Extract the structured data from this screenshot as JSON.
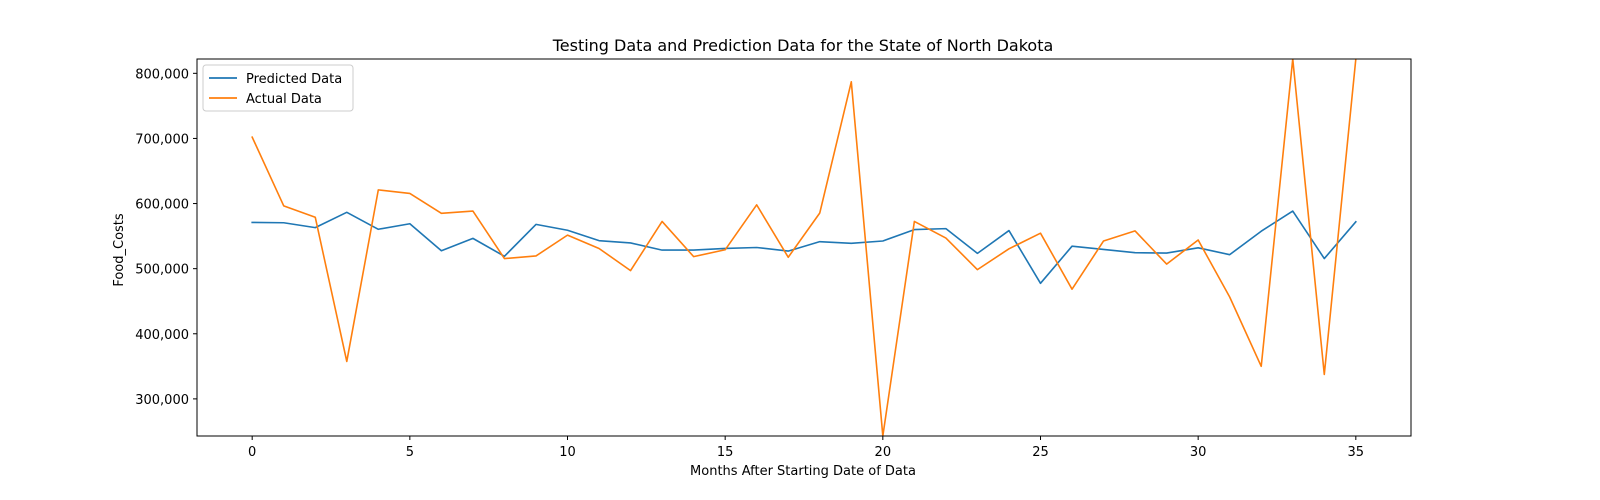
{
  "chart_data": {
    "type": "line",
    "title": "Testing Data and Prediction Data for the State of North Dakota",
    "xlabel": "Months After Starting Date of Data",
    "ylabel": "Food_Costs",
    "xlim": [
      -1.75,
      36.75
    ],
    "ylim": [
      243000,
      822000
    ],
    "x_ticks": [
      0,
      5,
      10,
      15,
      20,
      25,
      30,
      35
    ],
    "y_ticks": [
      300000,
      400000,
      500000,
      600000,
      700000,
      800000
    ],
    "y_tick_labels": [
      "300,000",
      "400,000",
      "500,000",
      "600,000",
      "700,000",
      "800,000"
    ],
    "x": [
      0,
      1,
      2,
      3,
      4,
      5,
      6,
      7,
      8,
      9,
      10,
      11,
      12,
      13,
      14,
      15,
      16,
      17,
      18,
      19,
      20,
      21,
      22,
      23,
      24,
      25,
      26,
      27,
      28,
      29,
      30,
      31,
      32,
      33,
      34,
      35
    ],
    "series": [
      {
        "name": "Predicted Data",
        "color": "#1f77b4",
        "values": [
          571000,
          570500,
          563000,
          586500,
          560500,
          569000,
          527500,
          546500,
          519000,
          568000,
          559000,
          543000,
          539500,
          528500,
          528500,
          531000,
          532500,
          527000,
          541500,
          539000,
          542500,
          560000,
          561500,
          523500,
          558500,
          477500,
          534500,
          529500,
          524500,
          524000,
          532000,
          521500,
          557500,
          588500,
          515500,
          572000
        ]
      },
      {
        "name": "Actual Data",
        "color": "#ff7f0e",
        "values": [
          702000,
          596500,
          579000,
          357500,
          621000,
          615500,
          585000,
          588500,
          515500,
          519500,
          551500,
          531000,
          497000,
          572500,
          518500,
          529000,
          598000,
          517500,
          585500,
          787000,
          243000,
          572500,
          547000,
          498500,
          530500,
          554500,
          468500,
          542500,
          558000,
          507000,
          544000,
          456500,
          350000,
          822000,
          337500,
          822000
        ]
      }
    ],
    "legend": {
      "placement": "top-left"
    },
    "grid": false
  }
}
